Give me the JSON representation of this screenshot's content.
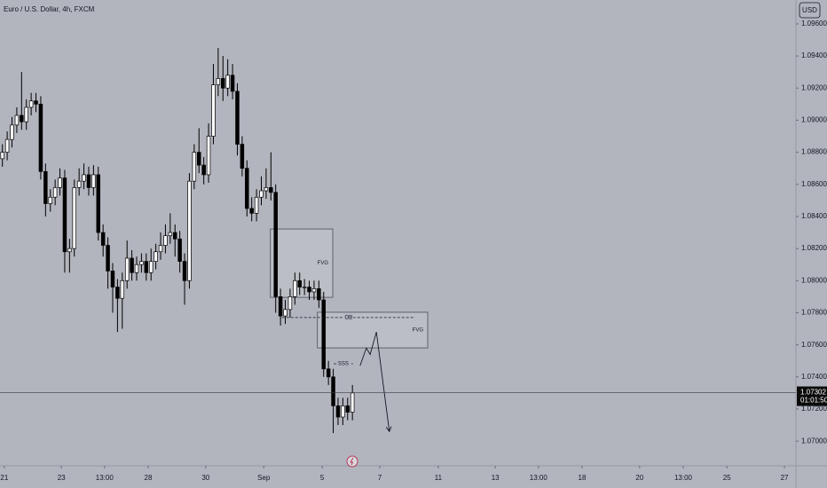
{
  "chart_data": {
    "type": "candlestick",
    "title": "Euro / U.S. Dollar, 4h, FXCM",
    "currency": "USD",
    "x": [
      0,
      1,
      2,
      3,
      4,
      5,
      6,
      7,
      8,
      9,
      10,
      11,
      12,
      13,
      14,
      15,
      16,
      17,
      18,
      19,
      20,
      21,
      22,
      23,
      24,
      25,
      26,
      27,
      28,
      29,
      30,
      31,
      32,
      33,
      34,
      35,
      36,
      37,
      38,
      39,
      40,
      41,
      42,
      43,
      44,
      45,
      46,
      47,
      48,
      49,
      50,
      51,
      52,
      53,
      54,
      55,
      56,
      57,
      58,
      59,
      60,
      61,
      62,
      63,
      64,
      65,
      66,
      67,
      68,
      69,
      70,
      71,
      72,
      73
    ],
    "open": [
      1.0876,
      1.088,
      1.0888,
      1.0897,
      1.0903,
      1.0899,
      1.0908,
      1.0912,
      1.091,
      1.0868,
      1.0848,
      1.0852,
      1.0858,
      1.0864,
      1.0818,
      1.082,
      1.0858,
      1.0862,
      1.0866,
      1.0858,
      1.0866,
      1.083,
      1.0822,
      1.0806,
      1.0796,
      1.0789,
      1.08,
      1.0814,
      1.0805,
      1.081,
      1.0812,
      1.0805,
      1.0812,
      1.0818,
      1.0822,
      1.0828,
      1.083,
      1.0826,
      1.0812,
      1.08,
      1.0862,
      1.088,
      1.0872,
      1.0866,
      1.089,
      1.0922,
      1.0926,
      1.092,
      1.0928,
      1.0918,
      1.0885,
      1.087,
      1.0845,
      1.0842,
      1.0852,
      1.0856,
      1.0858,
      1.0855,
      1.079,
      1.0778,
      1.0782,
      1.079,
      1.08,
      1.0796,
      1.0796,
      1.0793,
      1.0795,
      1.0788,
      1.0745,
      1.074,
      1.0722,
      1.0715,
      1.0722,
      1.0718
    ],
    "high": [
      1.0885,
      1.0893,
      1.0902,
      1.0908,
      1.093,
      1.0913,
      1.0917,
      1.0917,
      1.0915,
      1.0873,
      1.0857,
      1.0863,
      1.087,
      1.0869,
      1.0826,
      1.0863,
      1.087,
      1.0873,
      1.0871,
      1.0872,
      1.0871,
      1.0835,
      1.0827,
      1.0811,
      1.0801,
      1.0805,
      1.0825,
      1.0819,
      1.0815,
      1.0817,
      1.0817,
      1.082,
      1.0823,
      1.083,
      1.0835,
      1.0842,
      1.0835,
      1.0831,
      1.0817,
      1.0867,
      1.0885,
      1.0895,
      1.0877,
      1.0898,
      1.0935,
      1.0945,
      1.094,
      1.0938,
      1.0935,
      1.0923,
      1.089,
      1.0875,
      1.0852,
      1.0857,
      1.0865,
      1.087,
      1.088,
      1.086,
      1.0795,
      1.0788,
      1.0795,
      1.0805,
      1.0805,
      1.0801,
      1.08,
      1.08,
      1.08,
      1.0793,
      1.075,
      1.0745,
      1.0727,
      1.0727,
      1.0727,
      1.0735
    ],
    "low": [
      1.0871,
      1.0875,
      1.0883,
      1.0892,
      1.0894,
      1.0894,
      1.0903,
      1.0905,
      1.0863,
      1.084,
      1.0843,
      1.0847,
      1.0853,
      1.0805,
      1.0805,
      1.0815,
      1.0853,
      1.0857,
      1.0853,
      1.0853,
      1.0825,
      1.0815,
      1.0795,
      1.078,
      1.0768,
      1.077,
      1.0795,
      1.08,
      1.08,
      1.0805,
      1.08,
      1.08,
      1.0807,
      1.0813,
      1.0817,
      1.0823,
      1.0815,
      1.0805,
      1.0785,
      1.0795,
      1.0857,
      1.0867,
      1.086,
      1.0861,
      1.0885,
      1.0915,
      1.0912,
      1.0915,
      1.0913,
      1.0878,
      1.0865,
      1.084,
      1.0837,
      1.0837,
      1.0847,
      1.0851,
      1.085,
      1.078,
      1.0772,
      1.0773,
      1.0777,
      1.0785,
      1.0791,
      1.0791,
      1.0788,
      1.0788,
      1.0783,
      1.074,
      1.0735,
      1.0705,
      1.071,
      1.071,
      1.0713,
      1.0713
    ],
    "close": [
      1.088,
      1.0888,
      1.0897,
      1.0903,
      1.0899,
      1.0908,
      1.0912,
      1.091,
      1.0868,
      1.0848,
      1.0852,
      1.0858,
      1.0864,
      1.0818,
      1.082,
      1.0858,
      1.0862,
      1.0866,
      1.0858,
      1.0866,
      1.083,
      1.0822,
      1.0806,
      1.0796,
      1.0789,
      1.08,
      1.0814,
      1.0805,
      1.081,
      1.0812,
      1.0805,
      1.0812,
      1.0818,
      1.0822,
      1.0828,
      1.083,
      1.0826,
      1.0812,
      1.08,
      1.0862,
      1.088,
      1.0872,
      1.0866,
      1.089,
      1.0922,
      1.0926,
      1.092,
      1.0928,
      1.0918,
      1.0885,
      1.087,
      1.0845,
      1.0842,
      1.0852,
      1.0856,
      1.0858,
      1.0855,
      1.079,
      1.0778,
      1.0782,
      1.079,
      1.08,
      1.0796,
      1.0796,
      1.0793,
      1.0795,
      1.0788,
      1.0745,
      1.074,
      1.0722,
      1.0715,
      1.0722,
      1.0718,
      1.073
    ],
    "up_color": "#ffffff",
    "down_color": "#000000",
    "xlim": [
      -0.5,
      165.5
    ],
    "xticks": [
      {
        "value": 0.4,
        "label": "21"
      },
      {
        "value": 12.3,
        "label": "23"
      },
      {
        "value": 21.3,
        "label": "13:00"
      },
      {
        "value": 30.4,
        "label": "28"
      },
      {
        "value": 42.4,
        "label": "30"
      },
      {
        "value": 54.5,
        "label": "Sep"
      },
      {
        "value": 66.7,
        "label": "5"
      },
      {
        "value": 78.7,
        "label": "7"
      },
      {
        "value": 90.9,
        "label": "11"
      },
      {
        "value": 102.8,
        "label": "13"
      },
      {
        "value": 111.8,
        "label": "13:00"
      },
      {
        "value": 120.9,
        "label": "18"
      },
      {
        "value": 132.9,
        "label": "20"
      },
      {
        "value": 142,
        "label": "13:00"
      },
      {
        "value": 151.1,
        "label": "25"
      },
      {
        "value": 163.1,
        "label": "27"
      }
    ],
    "ylim": [
      1.06846,
      1.09749
    ],
    "yticks": [
      {
        "value": 1.096,
        "label": "1.09600"
      },
      {
        "value": 1.094,
        "label": "1.09400"
      },
      {
        "value": 1.092,
        "label": "1.09200"
      },
      {
        "value": 1.09,
        "label": "1.09000"
      },
      {
        "value": 1.088,
        "label": "1.08800"
      },
      {
        "value": 1.086,
        "label": "1.08600"
      },
      {
        "value": 1.084,
        "label": "1.08400"
      },
      {
        "value": 1.082,
        "label": "1.08200"
      },
      {
        "value": 1.08,
        "label": "1.08000"
      },
      {
        "value": 1.078,
        "label": "1.07800"
      },
      {
        "value": 1.076,
        "label": "1.07600"
      },
      {
        "value": 1.074,
        "label": "1.07400"
      },
      {
        "value": 1.072,
        "label": "1.07200"
      },
      {
        "value": 1.07,
        "label": "1.07000"
      }
    ],
    "grid": false,
    "last_price": 1.07302,
    "countdown": "01:01:50",
    "zones": [
      {
        "label": "FVG",
        "x": [
          55.9,
          68.9
        ],
        "y": [
          1.07896,
          1.08322
        ]
      },
      {
        "label": "FVG",
        "x": [
          65.7,
          88.7
        ],
        "y": [
          1.07581,
          1.07803
        ]
      }
    ],
    "levels": [
      {
        "label": "OB",
        "x": [
          58.3,
          86.1
        ],
        "y": 1.0777
      },
      {
        "label": "SSS",
        "x": [
          69.1,
          73.1
        ],
        "y": 1.07482
      }
    ],
    "projection": {
      "x": [
        74.6,
        75.9,
        76.7,
        78.0,
        80.7
      ],
      "y": [
        1.0747,
        1.0758,
        1.0754,
        1.0768,
        1.0706
      ]
    }
  }
}
